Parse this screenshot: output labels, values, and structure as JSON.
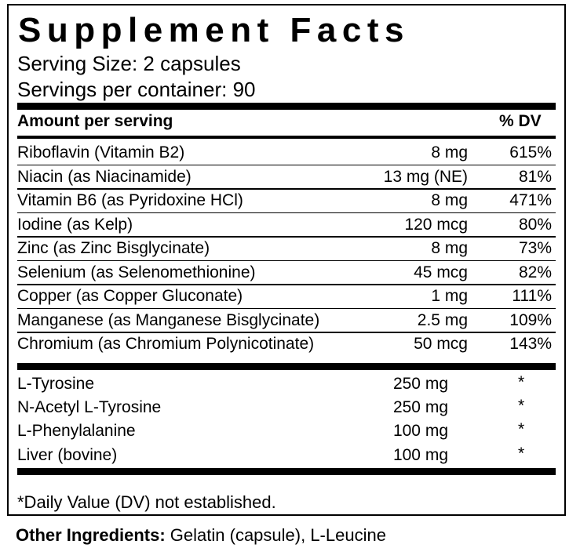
{
  "title": "Supplement Facts",
  "serving_size": "Serving Size: 2 capsules",
  "servings_per_container": "Servings per container: 90",
  "header": {
    "amount_label": "Amount per serving",
    "dv_label": "% DV"
  },
  "nutrients": [
    {
      "name": "Riboflavin (Vitamin B2)",
      "amount": "8 mg",
      "dv": "615%"
    },
    {
      "name": "Niacin (as Niacinamide)",
      "amount": "13 mg (NE)",
      "dv": "81%"
    },
    {
      "name": "Vitamin B6 (as Pyridoxine HCl)",
      "amount": "8 mg",
      "dv": "471%"
    },
    {
      "name": "Iodine (as Kelp)",
      "amount": "120 mcg",
      "dv": "80%"
    },
    {
      "name": "Zinc (as Zinc Bisglycinate)",
      "amount": "8 mg",
      "dv": "73%"
    },
    {
      "name": "Selenium (as Selenomethionine)",
      "amount": "45 mcg",
      "dv": "82%"
    },
    {
      "name": "Copper (as Copper Gluconate)",
      "amount": "1 mg",
      "dv": "111%"
    },
    {
      "name": "Manganese (as Manganese Bisglycinate)",
      "amount": "2.5 mg",
      "dv": "109%"
    },
    {
      "name": "Chromium (as Chromium Polynicotinate)",
      "amount": "50 mcg",
      "dv": "143%"
    }
  ],
  "others": [
    {
      "name": "L-Tyrosine",
      "amount": "250 mg",
      "dv": "*"
    },
    {
      "name": "N-Acetyl L-Tyrosine",
      "amount": "250 mg",
      "dv": "*"
    },
    {
      "name": "L-Phenylalanine",
      "amount": "100 mg",
      "dv": "*"
    },
    {
      "name": "Liver (bovine)",
      "amount": "100 mg",
      "dv": "*"
    }
  ],
  "footnote": "*Daily Value (DV) not established.",
  "other_ingredients": {
    "label": "Other Ingredients:",
    "text": " Gelatin (capsule), L-Leucine"
  }
}
